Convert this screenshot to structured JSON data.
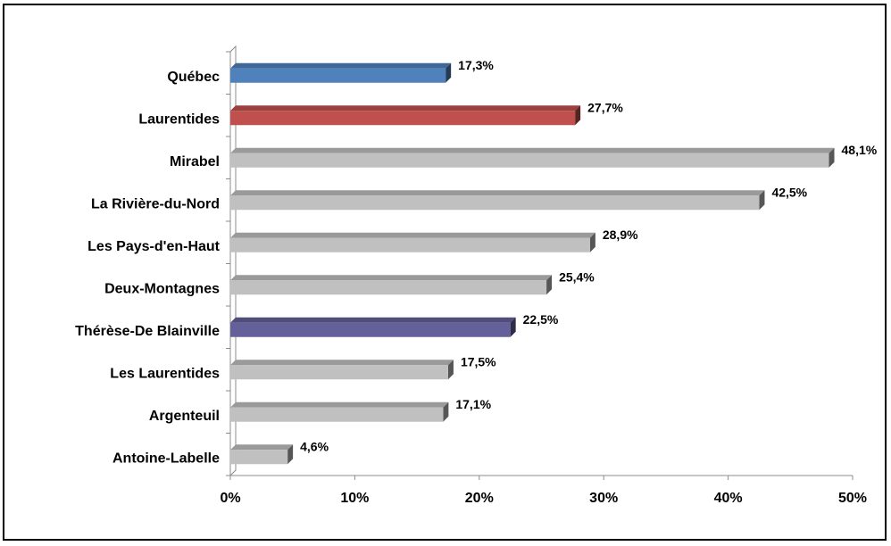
{
  "chart_data": {
    "type": "bar",
    "orientation": "horizontal",
    "title": "",
    "xlabel": "",
    "ylabel": "",
    "xlim": [
      0,
      50
    ],
    "x_ticks": [
      0,
      10,
      20,
      30,
      40,
      50
    ],
    "x_tick_labels": [
      "0%",
      "10%",
      "20%",
      "30%",
      "40%",
      "50%"
    ],
    "grid": false,
    "legend": "none",
    "style": "3d",
    "categories": [
      "Québec",
      "Laurentides",
      "Mirabel",
      "La Rivière-du-Nord",
      "Les Pays-d'en-Haut",
      "Deux-Montagnes",
      "Thérèse-De Blainville",
      "Les Laurentides",
      "Argenteuil",
      "Antoine-Labelle"
    ],
    "values": [
      17.3,
      27.7,
      48.1,
      42.5,
      28.9,
      25.4,
      22.5,
      17.5,
      17.1,
      4.6
    ],
    "value_labels": [
      "17,3%",
      "27,7%",
      "48,1%",
      "42,5%",
      "28,9%",
      "25,4%",
      "22,5%",
      "17,5%",
      "17,1%",
      "4,6%"
    ],
    "colors": [
      "#4F81BD",
      "#C0504D",
      "#C0C0C0",
      "#C0C0C0",
      "#C0C0C0",
      "#C0C0C0",
      "#64609A",
      "#C0C0C0",
      "#C0C0C0",
      "#C0C0C0"
    ]
  }
}
